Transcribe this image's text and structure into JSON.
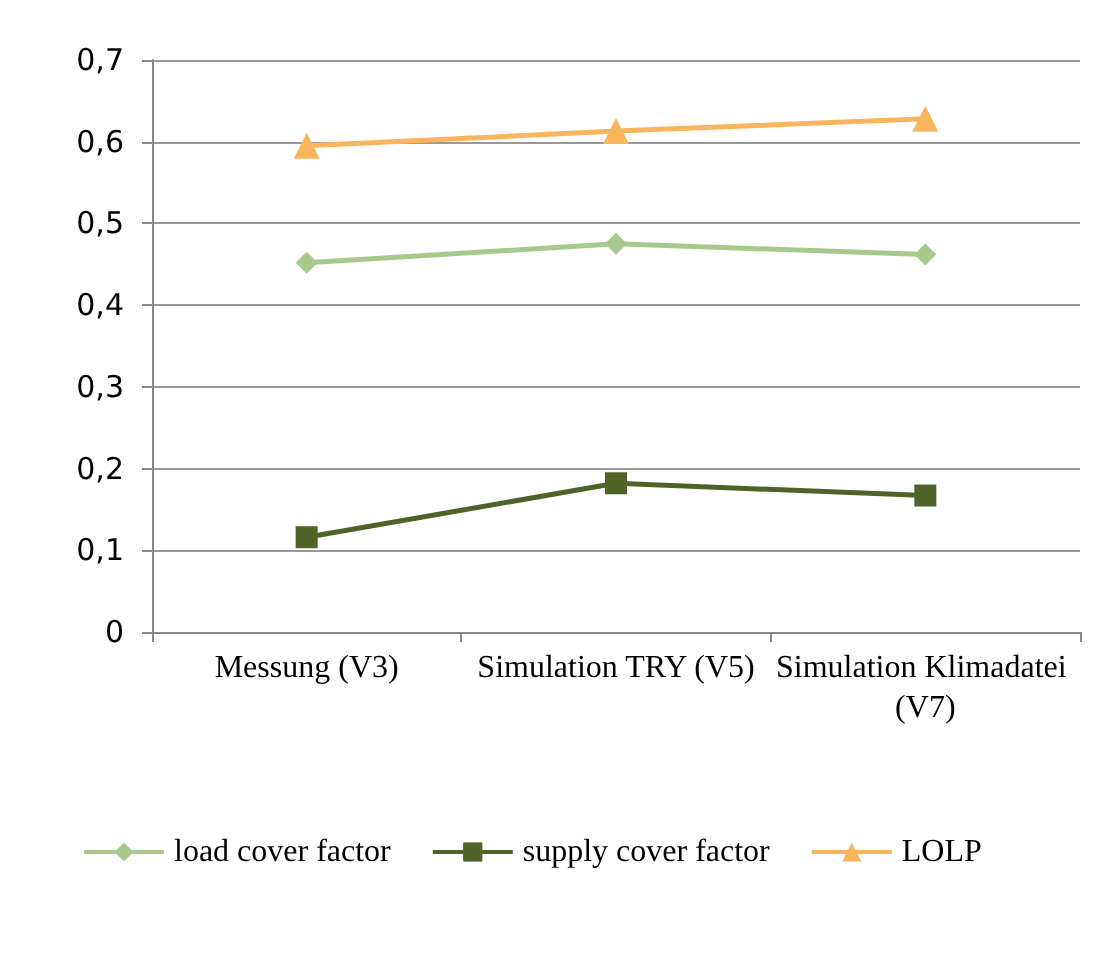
{
  "chart_data": {
    "type": "line",
    "categories": [
      "Messung (V3)",
      "Simulation TRY (V5)",
      "Simulation Klimadatei (V7)"
    ],
    "series": [
      {
        "name": "load cover factor",
        "color": "#a9c98c",
        "marker": "diamond",
        "values": [
          0.452,
          0.475,
          0.462
        ]
      },
      {
        "name": "supply cover factor",
        "color": "#4f6228",
        "marker": "square",
        "values": [
          0.116,
          0.182,
          0.167
        ]
      },
      {
        "name": "LOLP",
        "color": "#f9b55d",
        "marker": "triangle",
        "values": [
          0.595,
          0.613,
          0.628
        ]
      }
    ],
    "ylim": [
      0,
      0.7
    ],
    "yticks": [
      {
        "value": 0,
        "label": "0"
      },
      {
        "value": 0.1,
        "label": "0,1"
      },
      {
        "value": 0.2,
        "label": "0,2"
      },
      {
        "value": 0.3,
        "label": "0,3"
      },
      {
        "value": 0.4,
        "label": "0,4"
      },
      {
        "value": 0.5,
        "label": "0,5"
      },
      {
        "value": 0.6,
        "label": "0,6"
      },
      {
        "value": 0.7,
        "label": "0,7"
      }
    ],
    "grid": "y",
    "legend": "bottom"
  }
}
